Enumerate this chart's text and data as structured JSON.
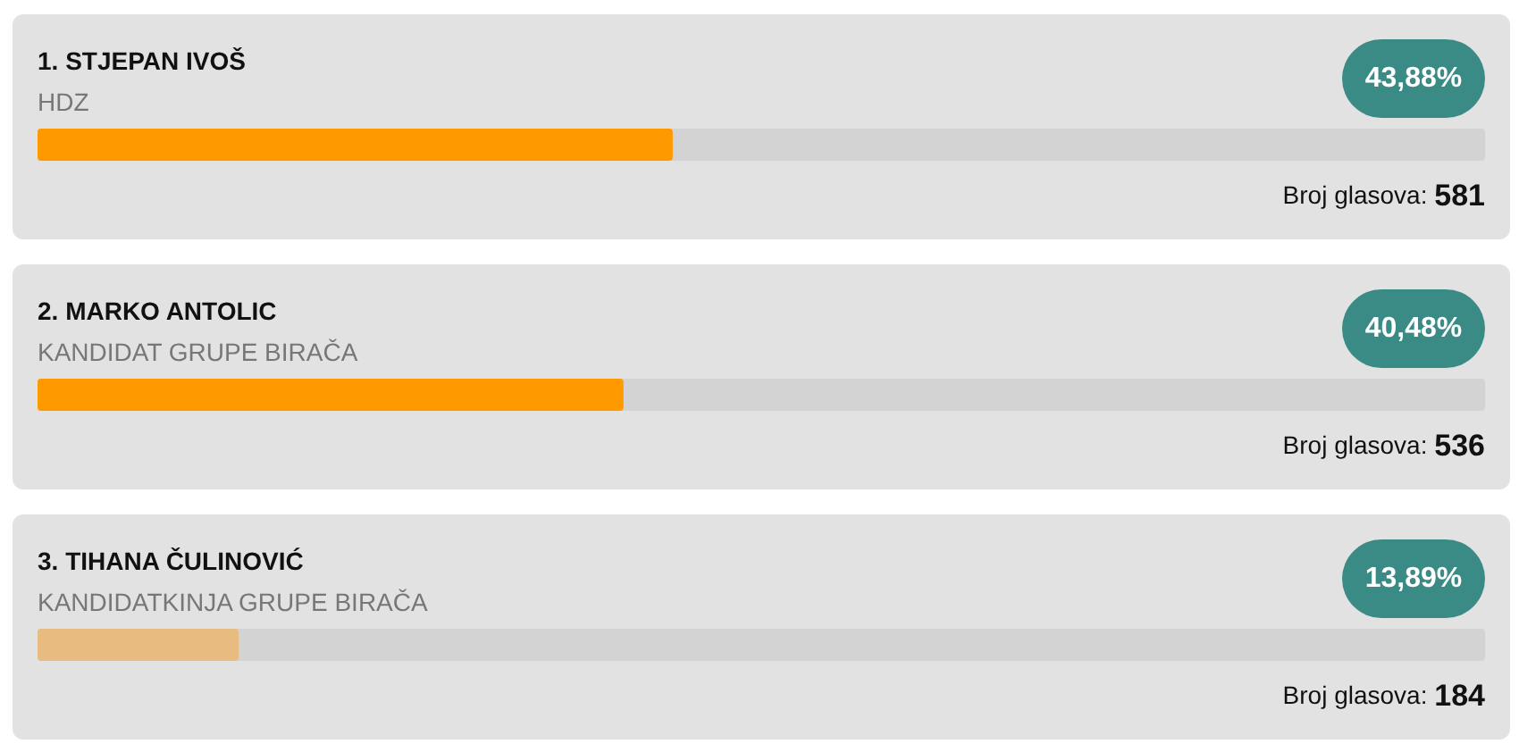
{
  "chart_data": {
    "type": "bar",
    "orientation": "horizontal",
    "categories": [
      "1. STJEPAN IVOŠ",
      "2. MARKO ANTOLIC",
      "3. TIHANA ČULINOVIĆ"
    ],
    "values": [
      43.88,
      40.48,
      13.89
    ],
    "colors": [
      "#ff9900",
      "#ff9900",
      "#e8bc80"
    ],
    "value_labels": [
      "43,88%",
      "40,48%",
      "13,89%"
    ],
    "xlim": [
      0,
      100
    ],
    "tick_labels": "y",
    "annotations": [
      "HDZ",
      "Broj glasova: 581",
      "KANDIDAT GRUPE BIRAČA",
      "Broj glasova: 536",
      "KANDIDATKINJA GRUPE BIRAČA",
      "Broj glasova: 184"
    ]
  }
}
